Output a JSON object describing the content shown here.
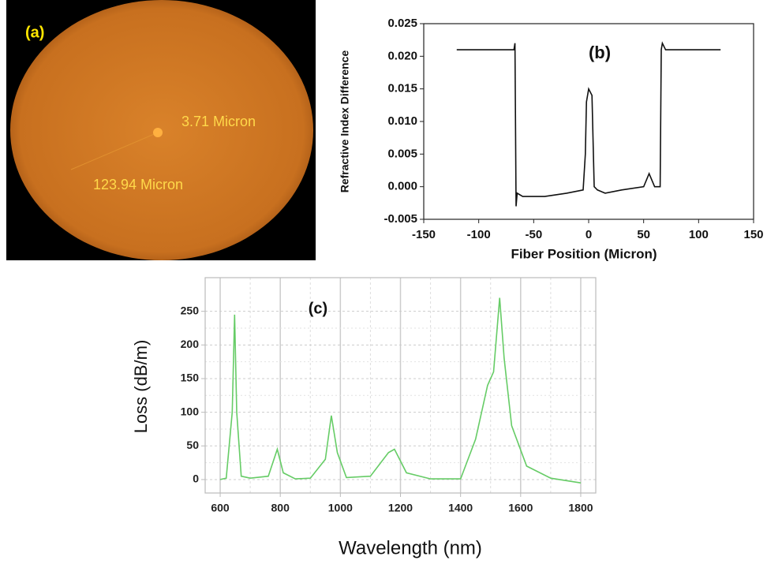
{
  "panel_a": {
    "label": "(a)",
    "annotations": [
      "3.71 Micron",
      "123.94 Micron"
    ]
  },
  "chart_data": [
    {
      "type": "line",
      "title": "(b)",
      "x_label": "Fiber Position (Micron)",
      "y_label": "Refractive Index Difference",
      "x": [
        -120,
        -68,
        -67,
        -66,
        -65,
        -60,
        -40,
        -20,
        -5,
        -3,
        -2,
        0,
        3,
        5,
        8,
        15,
        30,
        50,
        55,
        60,
        65,
        66,
        67,
        70,
        120
      ],
      "values": [
        0.021,
        0.021,
        0.022,
        -0.003,
        -0.001,
        -0.0015,
        -0.0015,
        -0.001,
        -0.0005,
        0.005,
        0.013,
        0.015,
        0.014,
        0.0,
        -0.0005,
        -0.001,
        -0.0005,
        0.0,
        0.002,
        0.0,
        0.0,
        0.021,
        0.022,
        0.021,
        0.021
      ],
      "color": "#111111",
      "xlim": [
        -150,
        150
      ],
      "xticks": [
        -150,
        -100,
        -50,
        0,
        50,
        100,
        150
      ],
      "ylim": [
        -0.005,
        0.025
      ],
      "yticks": [
        -0.005,
        {
          "value": 0,
          "label": "0.000"
        },
        0.005,
        {
          "value": 0.01,
          "label": "0.010"
        },
        0.015,
        {
          "value": 0.02,
          "label": "0.020"
        },
        0.025
      ],
      "grid": false
    },
    {
      "type": "line",
      "title": "(c)",
      "x_label": "Wavelength (nm)",
      "y_label": "Loss (dB/m)",
      "x": [
        600,
        620,
        640,
        648,
        655,
        670,
        700,
        760,
        790,
        810,
        850,
        900,
        950,
        970,
        990,
        1020,
        1100,
        1160,
        1180,
        1220,
        1300,
        1400,
        1450,
        1490,
        1510,
        1530,
        1545,
        1570,
        1620,
        1700,
        1800
      ],
      "values": [
        0,
        2,
        100,
        245,
        100,
        5,
        2,
        5,
        45,
        10,
        1,
        2,
        30,
        95,
        40,
        3,
        5,
        40,
        45,
        10,
        1,
        1,
        60,
        140,
        160,
        270,
        180,
        80,
        20,
        2,
        -5
      ],
      "color": "#66cc66",
      "xlim": [
        550,
        1850
      ],
      "xticks": [
        600,
        800,
        1000,
        1200,
        1400,
        1600,
        1800
      ],
      "ylim": [
        -20,
        300
      ],
      "yticks": [
        0,
        50,
        100,
        150,
        200,
        250
      ],
      "grid": true
    }
  ]
}
